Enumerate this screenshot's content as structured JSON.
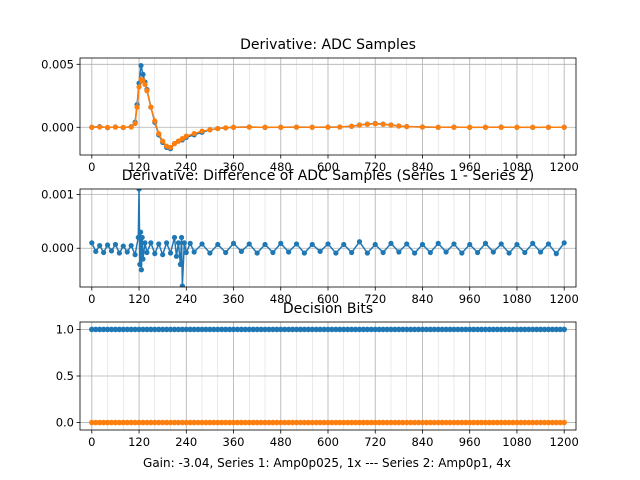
{
  "figure": {
    "xlabel": "Gain: -3.04, Series 1: Amp0p025, 1x --- Series 2: Amp0p1, 4x"
  },
  "colors": {
    "series1": "#1f77b4",
    "series2": "#ff7f0e",
    "grid": "#b0b0b0",
    "frame": "#000000"
  },
  "chart_data": [
    {
      "type": "line",
      "title": "Derivative: ADC Samples",
      "xlim": [
        -30,
        1230
      ],
      "ylim": [
        -0.0022,
        0.0055
      ],
      "xticks": [
        0,
        120,
        240,
        360,
        480,
        600,
        720,
        840,
        960,
        1080,
        1200
      ],
      "xtick_labels": [
        "0",
        "120",
        "240",
        "360",
        "480",
        "600",
        "720",
        "840",
        "960",
        "1080",
        "1200"
      ],
      "yticks": [
        0.0,
        0.005
      ],
      "ytick_labels": [
        "0.000",
        "0.005"
      ],
      "grid": true,
      "series": [
        {
          "name": "Series 1",
          "x": [
            0,
            20,
            40,
            60,
            80,
            100,
            110,
            115,
            120,
            125,
            130,
            135,
            140,
            150,
            160,
            170,
            180,
            190,
            200,
            210,
            220,
            230,
            240,
            260,
            280,
            300,
            320,
            340,
            360,
            400,
            440,
            480,
            520,
            560,
            600,
            630,
            660,
            680,
            700,
            720,
            740,
            760,
            780,
            800,
            840,
            880,
            920,
            960,
            1000,
            1040,
            1080,
            1120,
            1160,
            1200
          ],
          "y": [
            0.0,
            5e-05,
            -3e-05,
            2e-05,
            -2e-05,
            4e-05,
            0.0004,
            0.0018,
            0.0035,
            0.0049,
            0.0042,
            0.0036,
            0.003,
            0.0016,
            0.0004,
            -0.0006,
            -0.0012,
            -0.0016,
            -0.0017,
            -0.0013,
            -0.0011,
            -0.001,
            -0.0008,
            -0.0006,
            -0.0004,
            -0.0002,
            -0.0001,
            -5e-05,
            0.0,
            2e-05,
            -1e-05,
            0.0,
            1e-05,
            0.0,
            1e-05,
            2e-05,
            8e-05,
            0.00018,
            0.00025,
            0.0003,
            0.00025,
            0.00018,
            0.0001,
            6e-05,
            2e-05,
            0.0,
            1e-05,
            -1e-05,
            0.0,
            1e-05,
            0.0,
            -1e-05,
            0.0,
            0.0
          ]
        },
        {
          "name": "Series 2",
          "x": [
            0,
            20,
            40,
            60,
            80,
            100,
            110,
            115,
            120,
            125,
            130,
            135,
            140,
            150,
            160,
            170,
            180,
            190,
            200,
            210,
            220,
            230,
            240,
            260,
            280,
            300,
            320,
            340,
            360,
            400,
            440,
            480,
            520,
            560,
            600,
            630,
            660,
            680,
            700,
            720,
            740,
            760,
            780,
            800,
            840,
            880,
            920,
            960,
            1000,
            1040,
            1080,
            1120,
            1160,
            1200
          ],
          "y": [
            0.0,
            2e-05,
            -1e-05,
            1e-05,
            -1e-05,
            2e-05,
            0.0003,
            0.0016,
            0.0032,
            0.0038,
            0.0037,
            0.0034,
            0.0029,
            0.0016,
            0.0005,
            -0.0005,
            -0.0011,
            -0.0015,
            -0.0016,
            -0.0013,
            -0.0011,
            -0.0009,
            -0.0007,
            -0.0005,
            -0.0003,
            -0.0002,
            -0.0001,
            -4e-05,
            0.0,
            1e-05,
            0.0,
            0.0,
            1e-05,
            0.0,
            1e-05,
            2e-05,
            8e-05,
            0.00017,
            0.00024,
            0.00028,
            0.00024,
            0.00017,
            0.0001,
            5e-05,
            2e-05,
            0.0,
            0.0,
            0.0,
            0.0,
            0.0,
            0.0,
            0.0,
            0.0,
            0.0
          ]
        }
      ]
    },
    {
      "type": "line",
      "title": "Derivative: Difference of ADC Samples (Series 1 - Series 2)",
      "xlim": [
        -30,
        1230
      ],
      "ylim": [
        -0.00072,
        0.0011
      ],
      "xticks": [
        0,
        120,
        240,
        360,
        480,
        600,
        720,
        840,
        960,
        1080,
        1200
      ],
      "xtick_labels": [
        "0",
        "120",
        "240",
        "360",
        "480",
        "600",
        "720",
        "840",
        "960",
        "1080",
        "1200"
      ],
      "yticks": [
        0.0,
        0.001
      ],
      "ytick_labels": [
        "0.000",
        "0.001"
      ],
      "grid": true,
      "series": [
        {
          "name": "Difference",
          "x": [
            0,
            10,
            20,
            30,
            40,
            50,
            60,
            70,
            80,
            90,
            100,
            110,
            118,
            120,
            122,
            124,
            126,
            128,
            130,
            135,
            140,
            150,
            160,
            170,
            180,
            190,
            200,
            210,
            215,
            220,
            225,
            228,
            230,
            235,
            240,
            250,
            260,
            280,
            300,
            320,
            340,
            360,
            380,
            400,
            420,
            440,
            460,
            480,
            500,
            520,
            540,
            560,
            580,
            600,
            620,
            640,
            660,
            680,
            700,
            720,
            740,
            760,
            780,
            800,
            820,
            840,
            860,
            880,
            900,
            920,
            940,
            960,
            980,
            1000,
            1020,
            1040,
            1060,
            1080,
            1100,
            1120,
            1140,
            1160,
            1180,
            1200
          ],
          "y": [
            0.0001,
            -6e-05,
            5e-05,
            -8e-05,
            6e-05,
            -5e-05,
            7e-05,
            -9e-05,
            4e-05,
            -7e-05,
            5e-05,
            -0.00012,
            0.0002,
            0.0011,
            -0.0003,
            0.0003,
            -0.0004,
            0.0002,
            -0.0002,
            0.0001,
            -8e-05,
            0.0001,
            -0.0001,
            8e-05,
            -0.00012,
            0.0001,
            -9e-05,
            0.0002,
            -0.00015,
            0.0001,
            -0.0003,
            0.0002,
            -0.0007,
            0.0001,
            -8e-05,
            9e-05,
            -7e-05,
            8e-05,
            -9e-05,
            7e-05,
            -8e-05,
            9e-05,
            -6e-05,
            8e-05,
            -9e-05,
            7e-05,
            -8e-05,
            9e-05,
            -7e-05,
            8e-05,
            -9e-05,
            7e-05,
            -6e-05,
            8e-05,
            -9e-05,
            7e-05,
            -8e-05,
            0.00012,
            -9e-05,
            7e-05,
            -8e-05,
            9e-05,
            -7e-05,
            8e-05,
            -9e-05,
            7e-05,
            -8e-05,
            9e-05,
            -7e-05,
            8e-05,
            -9e-05,
            7e-05,
            -8e-05,
            9e-05,
            -7e-05,
            8e-05,
            -9e-05,
            7e-05,
            -8e-05,
            9e-05,
            -7e-05,
            8e-05,
            -0.0001,
            0.0001
          ]
        }
      ]
    },
    {
      "type": "scatter",
      "title": "Decision Bits",
      "xlim": [
        -30,
        1230
      ],
      "ylim": [
        -0.08,
        1.08
      ],
      "xticks": [
        0,
        120,
        240,
        360,
        480,
        600,
        720,
        840,
        960,
        1080,
        1200
      ],
      "xtick_labels": [
        "0",
        "120",
        "240",
        "360",
        "480",
        "600",
        "720",
        "840",
        "960",
        "1080",
        "1200"
      ],
      "yticks": [
        0.0,
        0.5,
        1.0
      ],
      "ytick_labels": [
        "0.0",
        "0.5",
        "1.0"
      ],
      "grid": true,
      "series": [
        {
          "name": "Series 1",
          "x_range": [
            0,
            1200
          ],
          "x_step": 10,
          "value": 1.0
        },
        {
          "name": "Series 2",
          "x_range": [
            0,
            1200
          ],
          "x_step": 10,
          "value": 0.0
        }
      ]
    }
  ]
}
